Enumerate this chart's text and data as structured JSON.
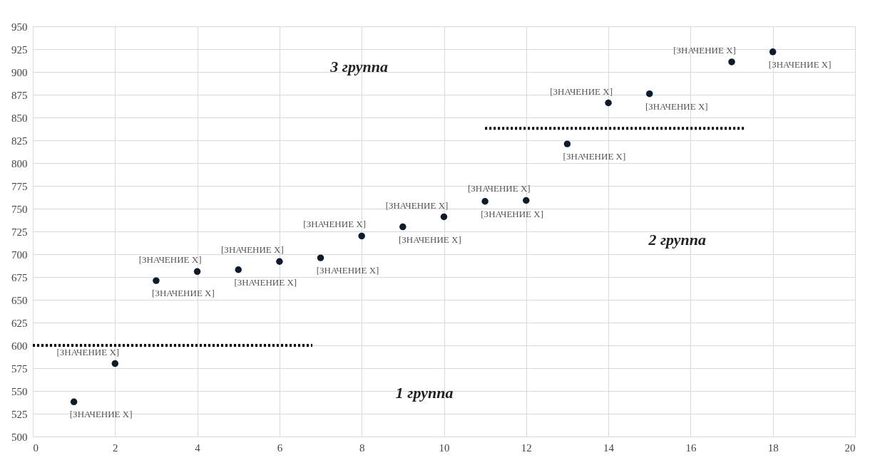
{
  "chart_data": {
    "type": "scatter",
    "xlim": [
      0,
      20
    ],
    "xticks": [
      0,
      2,
      4,
      6,
      8,
      10,
      12,
      14,
      16,
      18,
      20
    ],
    "ylim": [
      500,
      950
    ],
    "yticks": [
      500,
      525,
      550,
      575,
      600,
      625,
      650,
      675,
      700,
      725,
      750,
      775,
      800,
      825,
      850,
      875,
      900,
      925,
      950
    ],
    "grid": true,
    "marker": "circle",
    "series": [
      {
        "color": "#0d1b2a",
        "x": [
          1,
          2,
          3,
          4,
          5,
          6,
          7,
          8,
          9,
          10,
          11,
          12,
          13,
          14,
          15,
          17,
          18
        ],
        "values": [
          538,
          580,
          671,
          681,
          683,
          692,
          696,
          720,
          730,
          741,
          758,
          759,
          821,
          866,
          876,
          911,
          922
        ],
        "value_labels": [
          "[ЗНАЧЕНИЕ X]",
          "[ЗНАЧЕНИЕ X]",
          "[ЗНАЧЕНИЕ X]",
          "[ЗНАЧЕНИЕ X]",
          "[ЗНАЧЕНИЕ X]",
          "[ЗНАЧЕНИЕ X]",
          "[ЗНАЧЕНИЕ X]",
          "[ЗНАЧЕНИЕ X]",
          "[ЗНАЧЕНИЕ X]",
          "[ЗНАЧЕНИЕ X]",
          "[ЗНАЧЕНИЕ X]",
          "[ЗНАЧЕНИЕ X]",
          "[ЗНАЧЕНИЕ X]",
          "[ЗНАЧЕНИЕ X]",
          "[ЗНАЧЕНИЕ X]",
          "[ЗНАЧЕНИЕ X]",
          "[ЗНАЧЕНИЕ X]"
        ]
      },
      {
        "type": "line",
        "marker": "none",
        "color": "#000000",
        "line_style": "dotted",
        "x": [
          0,
          6.8
        ],
        "values": [
          600,
          600
        ]
      },
      {
        "type": "line",
        "marker": "none",
        "color": "#000000",
        "line_style": "dotted",
        "x": [
          11,
          17.3
        ],
        "values": [
          838,
          838
        ]
      }
    ],
    "annotations": [
      "3 группа",
      "2 группа",
      "1 группа"
    ]
  }
}
